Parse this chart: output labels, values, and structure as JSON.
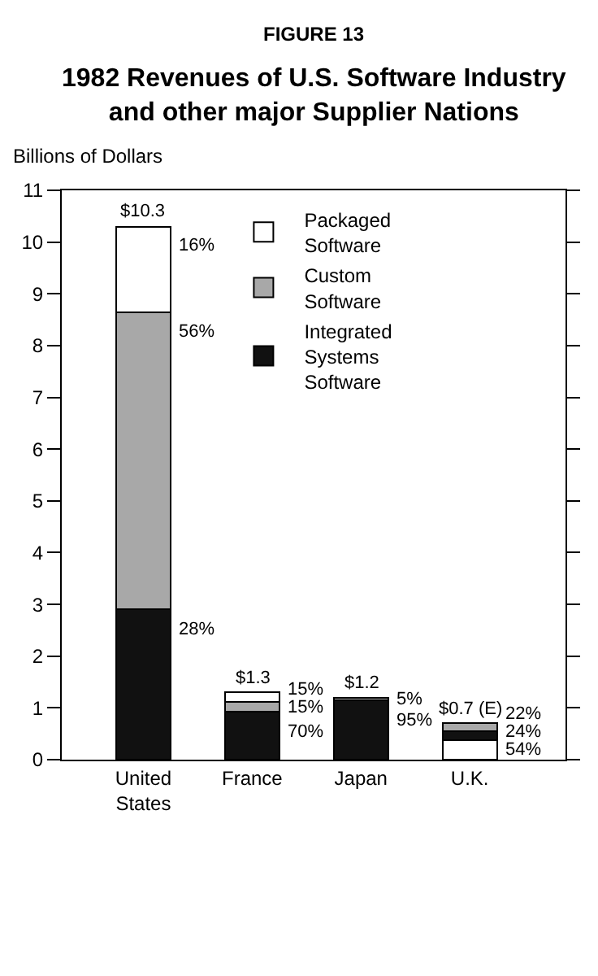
{
  "chart_data": {
    "type": "bar",
    "title": "FIGURE 13",
    "subtitle": "1982 Revenues of U.S. Software Industry and other major Supplier Nations",
    "ylabel": "Billions of Dollars",
    "categories": [
      "United States",
      "France",
      "Japan",
      "U.K."
    ],
    "stacked": true,
    "series": [
      {
        "color": "#ffffff",
        "values": [
          null,
          null,
          null,
          0.38
        ]
      },
      {
        "name": "Integrated Systems Software",
        "color": "#111111",
        "values": [
          2.9,
          0.92,
          1.14,
          0.17
        ]
      },
      {
        "name": "Custom Software",
        "color": "#a8a8a8",
        "values": [
          5.75,
          0.2,
          0.06,
          0.15
        ]
      },
      {
        "name": "Packaged Software",
        "color": "#ffffff",
        "values": [
          1.65,
          0.18,
          null,
          null
        ]
      }
    ],
    "totals": [
      "$10.3",
      "$1.3",
      "$1.2",
      "$0.7 (E)"
    ],
    "annotations": [
      {
        "text": "16%",
        "x": "United States",
        "y": 10.3
      },
      {
        "text": "56%",
        "x": "United States",
        "y": 8.65
      },
      {
        "text": "28%",
        "x": "United States",
        "y": 2.9
      },
      {
        "text": "15%",
        "x": "France",
        "y": 1.3
      },
      {
        "text": "15%",
        "x": "France",
        "y": 1.12
      },
      {
        "text": "70%",
        "x": "France",
        "y": 0.92
      },
      {
        "text": "5%",
        "x": "Japan",
        "y": 1.2
      },
      {
        "text": "95%",
        "x": "Japan",
        "y": 1.14
      },
      {
        "text": "22%",
        "x": "U.K.",
        "y": 0.7
      },
      {
        "text": "24%",
        "x": "U.K.",
        "y": 0.55
      },
      {
        "text": "54%",
        "x": "U.K.",
        "y": 0.38
      }
    ],
    "ylim": [
      0,
      11
    ],
    "yticks": [
      0,
      1,
      2,
      3,
      4,
      5,
      6,
      7,
      8,
      9,
      10,
      11
    ],
    "grid": false,
    "legend": "top"
  }
}
